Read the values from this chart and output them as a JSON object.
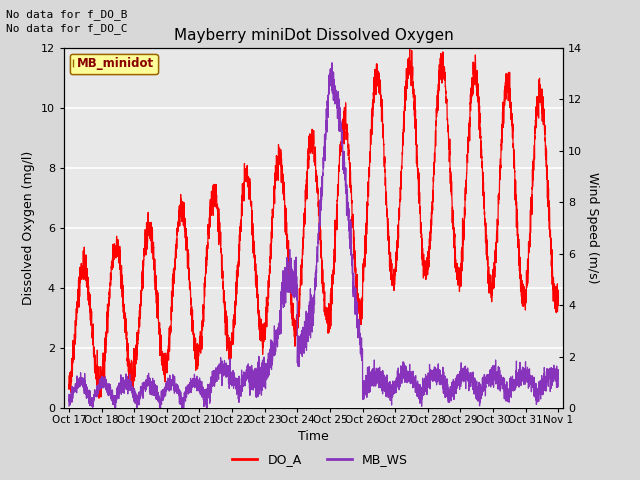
{
  "title": "Mayberry miniDot Dissolved Oxygen",
  "xlabel": "Time",
  "ylabel_left": "Dissolved Oxygen (mg/l)",
  "ylabel_right": "Wind Speed (m/s)",
  "no_data_text": [
    "No data for f_DO_B",
    "No data for f_DO_C"
  ],
  "legend_box_label": "MB_minidot",
  "legend_items": [
    "DO_A",
    "MB_WS"
  ],
  "legend_colors": [
    "#ff0000",
    "#8833bb"
  ],
  "ylim_left": [
    0,
    12
  ],
  "ylim_right": [
    0,
    14
  ],
  "yticks_left": [
    0,
    2,
    4,
    6,
    8,
    10,
    12
  ],
  "yticks_right": [
    0,
    2,
    4,
    6,
    8,
    10,
    12,
    14
  ],
  "bg_color": "#d8d8d8",
  "plot_bg_color": "#e8e8e8",
  "grid_color": "#ffffff",
  "do_color": "#ff0000",
  "ws_color": "#8833bb",
  "x_tick_labels": [
    "Oct 17",
    "Oct 18",
    "Oct 19",
    "Oct 20",
    "Oct 21",
    "Oct 22",
    "Oct 23",
    "Oct 24",
    "Oct 25",
    "Oct 26",
    "Oct 27",
    "Oct 28",
    "Oct 29",
    "Oct 30",
    "Oct 31",
    "Nov 1"
  ],
  "x_tick_positions": [
    0,
    1,
    2,
    3,
    4,
    5,
    6,
    7,
    8,
    9,
    10,
    11,
    12,
    13,
    14,
    15
  ]
}
